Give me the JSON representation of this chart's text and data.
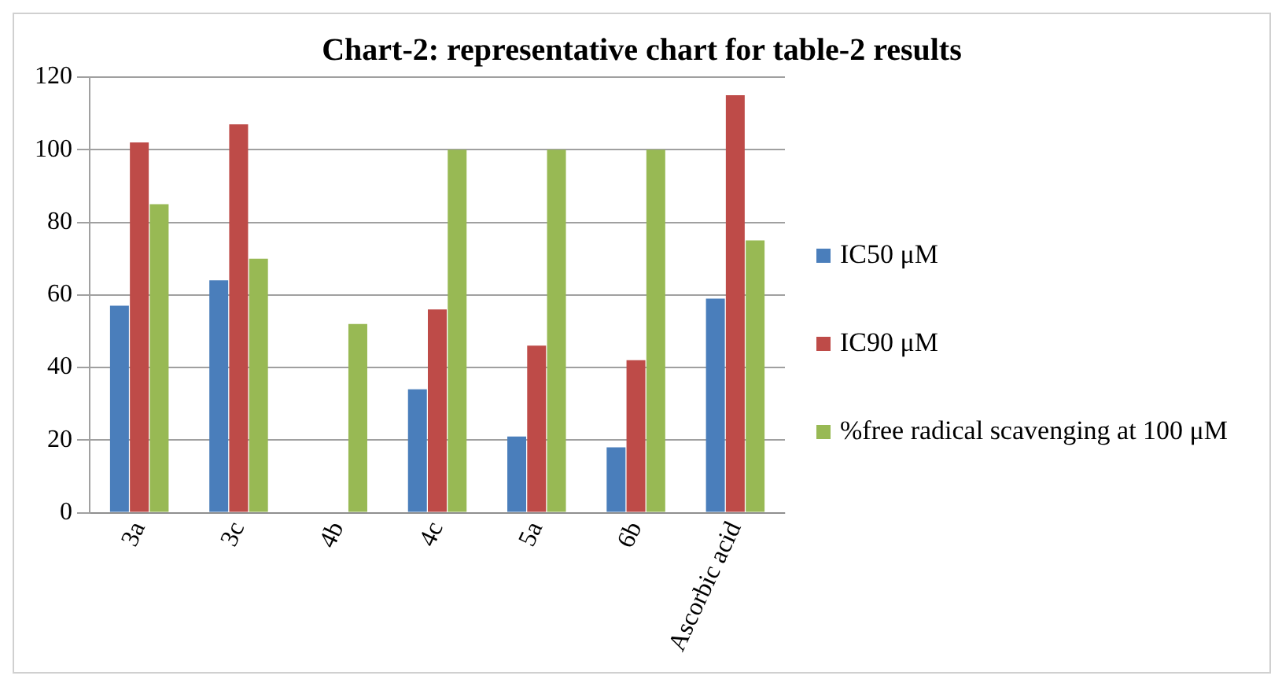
{
  "chart_data": {
    "type": "bar",
    "title": "Chart-2: representative chart for table-2 results",
    "categories": [
      "3a",
      "3c",
      "4b",
      "4c",
      "5a",
      "6b",
      "Ascorbic acid"
    ],
    "series": [
      {
        "name": "IC50  μM",
        "color": "#4a7ebb",
        "values": [
          57,
          64,
          0,
          34,
          21,
          18,
          59
        ]
      },
      {
        "name": "IC90  μM",
        "color": "#be4b48",
        "values": [
          102,
          107,
          0,
          56,
          46,
          42,
          115
        ]
      },
      {
        "name": "%free radical scavenging at 100  μM",
        "color": "#98b954",
        "values": [
          85,
          70,
          52,
          100,
          100,
          100,
          75
        ]
      }
    ],
    "ylim": [
      0,
      120
    ],
    "yticks": [
      0,
      20,
      40,
      60,
      80,
      100,
      120
    ],
    "grid": "y",
    "legend": "right"
  }
}
